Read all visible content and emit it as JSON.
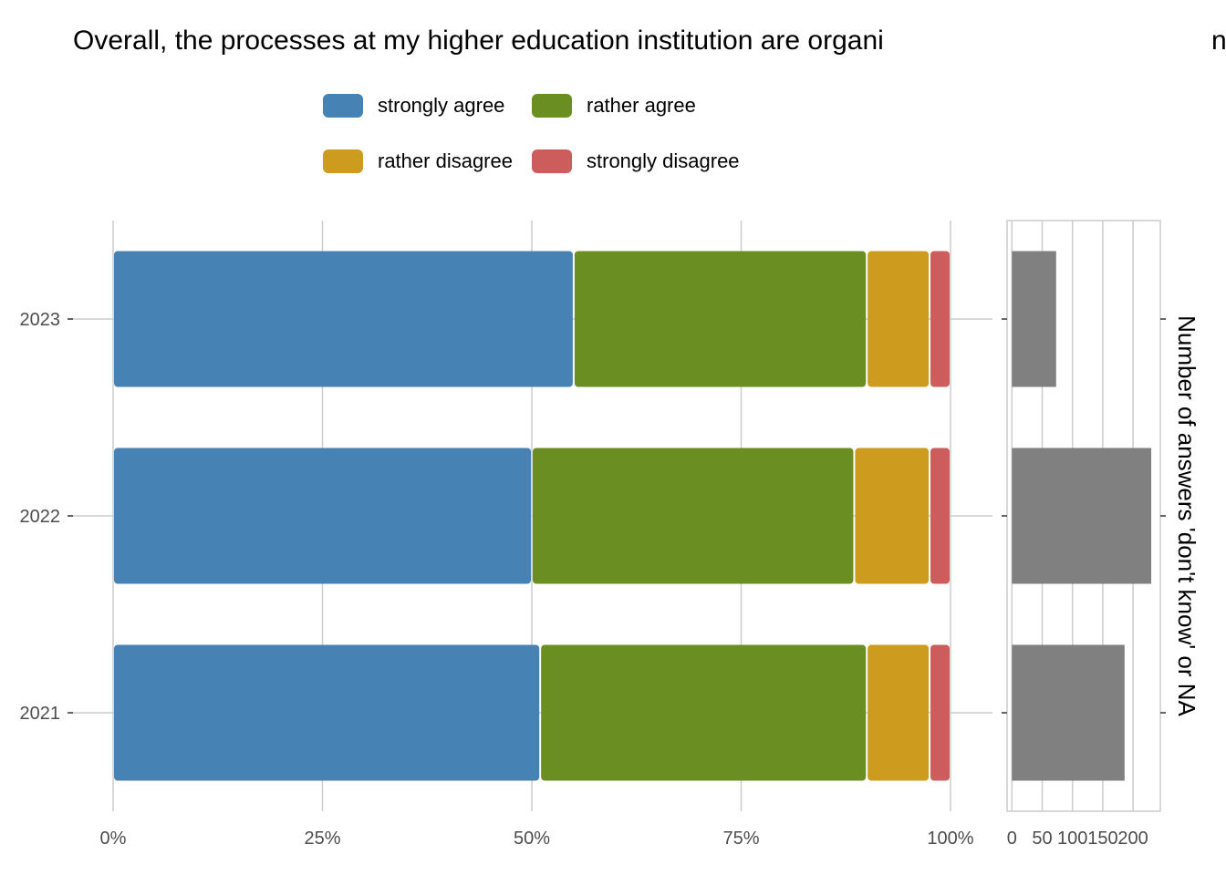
{
  "chart_data": [
    {
      "type": "bar",
      "orientation": "horizontal",
      "stacked": "percent",
      "title_visible": "Overall, the processes at my higher education institution are organi",
      "title_clipped_tail": "n",
      "categories": [
        "2023",
        "2022",
        "2021"
      ],
      "series": [
        {
          "name": "strongly agree",
          "color": "#4682B4",
          "values": [
            55,
            50,
            51
          ]
        },
        {
          "name": "rather agree",
          "color": "#6B8E23",
          "values": [
            35,
            38.5,
            39
          ]
        },
        {
          "name": "rather disagree",
          "color": "#CD9B1D",
          "values": [
            7.5,
            9,
            7.5
          ]
        },
        {
          "name": "strongly disagree",
          "color": "#CD5C5C",
          "values": [
            2.5,
            2.5,
            2.5
          ]
        }
      ],
      "x_ticks": [
        "0%",
        "25%",
        "50%",
        "75%",
        "100%"
      ],
      "xlim": [
        0,
        100
      ],
      "grid": true,
      "legend_position": "top"
    },
    {
      "type": "bar",
      "orientation": "horizontal",
      "categories": [
        "2023",
        "2022",
        "2021"
      ],
      "values": [
        73,
        230,
        186
      ],
      "color": "#808080",
      "x_ticks": [
        "0",
        "50",
        "100",
        "150",
        "200"
      ],
      "x_tick_values": [
        0,
        50,
        100,
        150,
        200
      ],
      "xlim": [
        -8,
        245
      ],
      "ylabel_right": "Number of answers 'don't know' or NA",
      "grid": true
    }
  ]
}
